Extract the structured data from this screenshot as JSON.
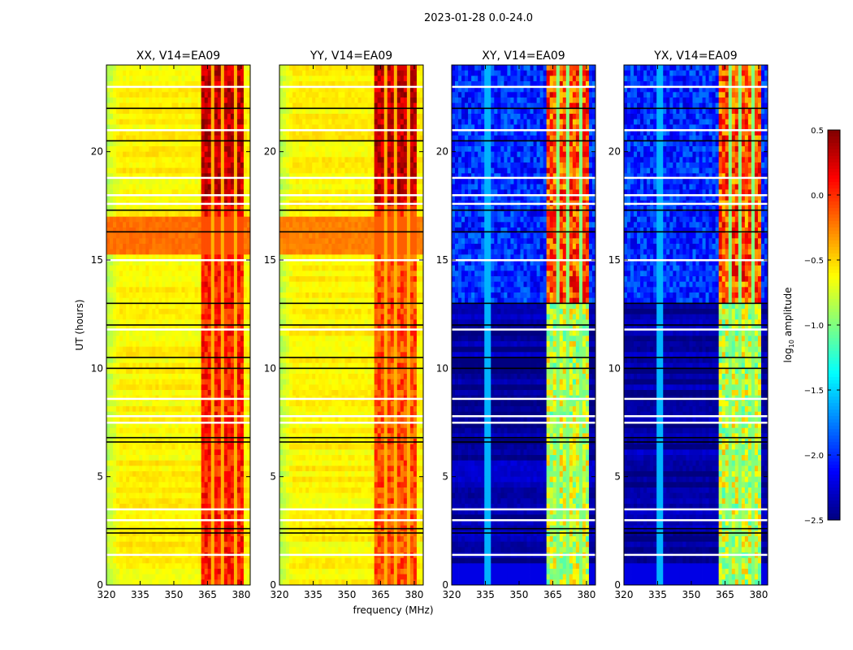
{
  "chart_data": {
    "type": "heatmap",
    "suptitle": "2023-01-28 0.0-24.0",
    "xlabel": "frequency (MHz)",
    "ylabel": "UT (hours)",
    "xlim": [
      320,
      384
    ],
    "ylim": [
      0,
      24
    ],
    "xticks": [
      "320",
      "335",
      "350",
      "365",
      "380"
    ],
    "xtick_values": [
      320,
      335,
      350,
      365,
      380
    ],
    "yticks": [
      "0",
      "5",
      "10",
      "15",
      "20"
    ],
    "ytick_values": [
      0,
      5,
      10,
      15,
      20
    ],
    "colorbar": {
      "label_main": "log",
      "label_sub": "10",
      "label_rest": " amplitude",
      "clim": [
        -2.5,
        0.5
      ],
      "colormap": "jet",
      "ticks": [
        "0.5",
        "0.0",
        "−0.5",
        "−1.0",
        "−1.5",
        "−2.0",
        "−2.5"
      ],
      "tick_values": [
        0.5,
        0.0,
        -0.5,
        -1.0,
        -1.5,
        -2.0,
        -2.5
      ]
    },
    "rfi_band_mhz": [
      362,
      381
    ],
    "band_gap_channels_mhz": [
      367,
      372,
      377
    ],
    "flagged_rows_white_ut": [
      1.4,
      3.0,
      3.5,
      7.5,
      7.8,
      8.6,
      11.8,
      15.0,
      17.6,
      18.0,
      18.8,
      21.0,
      23.0
    ],
    "flagged_rows_black_ut": [
      2.4,
      2.6,
      6.6,
      6.8,
      10.0,
      10.5,
      12.0,
      13.0,
      16.3,
      17.3,
      20.5,
      22.0
    ],
    "panels": [
      {
        "title": "XX, V14=EA09",
        "baseline": -0.6,
        "band_level": 0.05,
        "band_level_late": 0.3,
        "bright_hours": [
          15.2,
          17.0
        ],
        "bright_level": -0.2
      },
      {
        "title": "YY, V14=EA09",
        "baseline": -0.6,
        "band_level": -0.1,
        "band_level_late": 0.3,
        "bright_hours": [
          15.2,
          17.0
        ],
        "bright_level": -0.25
      },
      {
        "title": "XY, V14=EA09",
        "baseline": -2.4,
        "band_level": -0.8,
        "band_level_late": -0.1,
        "bright_hours": [
          13.0,
          24.0
        ],
        "bright_level": -2.0
      },
      {
        "title": "YX, V14=EA09",
        "baseline": -2.4,
        "band_level": -0.8,
        "band_level_late": -0.1,
        "bright_hours": [
          13.0,
          24.0
        ],
        "bright_level": -2.0
      }
    ]
  }
}
